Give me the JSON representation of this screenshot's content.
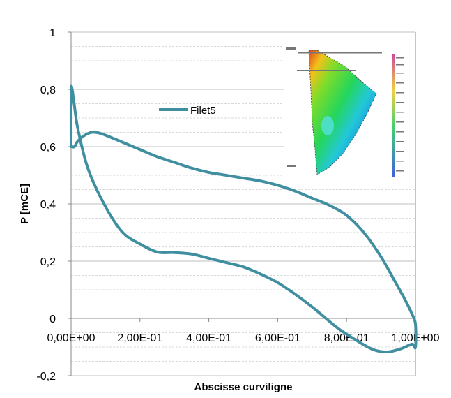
{
  "chart_data": {
    "type": "line",
    "title": "",
    "xlabel": "Abscisse curviligne",
    "ylabel": "P [mCE]",
    "xlim": [
      0,
      1.0
    ],
    "ylim": [
      -0.2,
      1.0
    ],
    "x_ticks": [
      {
        "value": 0.0,
        "label": "0,00E+00"
      },
      {
        "value": 0.2,
        "label": "2,00E-01"
      },
      {
        "value": 0.4,
        "label": "4,00E-01"
      },
      {
        "value": 0.6,
        "label": "6,00E-01"
      },
      {
        "value": 0.8,
        "label": "8,00E-01"
      },
      {
        "value": 1.0,
        "label": "1,00E+00"
      }
    ],
    "y_ticks": [
      {
        "value": -0.2,
        "label": "-0,2"
      },
      {
        "value": 0.0,
        "label": "0"
      },
      {
        "value": 0.2,
        "label": "0,2"
      },
      {
        "value": 0.4,
        "label": "0,4"
      },
      {
        "value": 0.6,
        "label": "0,6"
      },
      {
        "value": 0.8,
        "label": "0,8"
      },
      {
        "value": 1.0,
        "label": "1"
      }
    ],
    "grid": "horizontal major and minor",
    "legend_position": "upper-center",
    "color": "#3f8fa0",
    "series": [
      {
        "name": "Filet5",
        "points": [
          [
            0.0,
            0.6
          ],
          [
            0.003,
            0.6
          ],
          [
            0.01,
            0.6
          ],
          [
            0.02,
            0.62
          ],
          [
            0.04,
            0.64
          ],
          [
            0.06,
            0.65
          ],
          [
            0.08,
            0.648
          ],
          [
            0.1,
            0.64
          ],
          [
            0.15,
            0.615
          ],
          [
            0.2,
            0.59
          ],
          [
            0.25,
            0.565
          ],
          [
            0.3,
            0.545
          ],
          [
            0.35,
            0.525
          ],
          [
            0.4,
            0.51
          ],
          [
            0.45,
            0.5
          ],
          [
            0.5,
            0.49
          ],
          [
            0.55,
            0.48
          ],
          [
            0.6,
            0.465
          ],
          [
            0.65,
            0.445
          ],
          [
            0.7,
            0.42
          ],
          [
            0.75,
            0.395
          ],
          [
            0.8,
            0.36
          ],
          [
            0.85,
            0.3
          ],
          [
            0.9,
            0.215
          ],
          [
            0.94,
            0.13
          ],
          [
            0.97,
            0.065
          ],
          [
            0.99,
            0.015
          ],
          [
            1.0,
            -0.02
          ],
          [
            1.0,
            -0.1
          ],
          [
            0.99,
            -0.09
          ],
          [
            0.96,
            -0.105
          ],
          [
            0.92,
            -0.117
          ],
          [
            0.88,
            -0.11
          ],
          [
            0.84,
            -0.085
          ],
          [
            0.8,
            -0.055
          ],
          [
            0.77,
            -0.03
          ],
          [
            0.74,
            0.0
          ],
          [
            0.7,
            0.04
          ],
          [
            0.65,
            0.085
          ],
          [
            0.6,
            0.125
          ],
          [
            0.55,
            0.155
          ],
          [
            0.5,
            0.18
          ],
          [
            0.45,
            0.195
          ],
          [
            0.4,
            0.21
          ],
          [
            0.35,
            0.225
          ],
          [
            0.3,
            0.23
          ],
          [
            0.25,
            0.232
          ],
          [
            0.2,
            0.26
          ],
          [
            0.15,
            0.3
          ],
          [
            0.1,
            0.39
          ],
          [
            0.05,
            0.52
          ],
          [
            0.02,
            0.66
          ],
          [
            0.01,
            0.74
          ],
          [
            0.003,
            0.8
          ],
          [
            0.0,
            0.79
          ],
          [
            0.0,
            0.6
          ]
        ]
      }
    ]
  }
}
